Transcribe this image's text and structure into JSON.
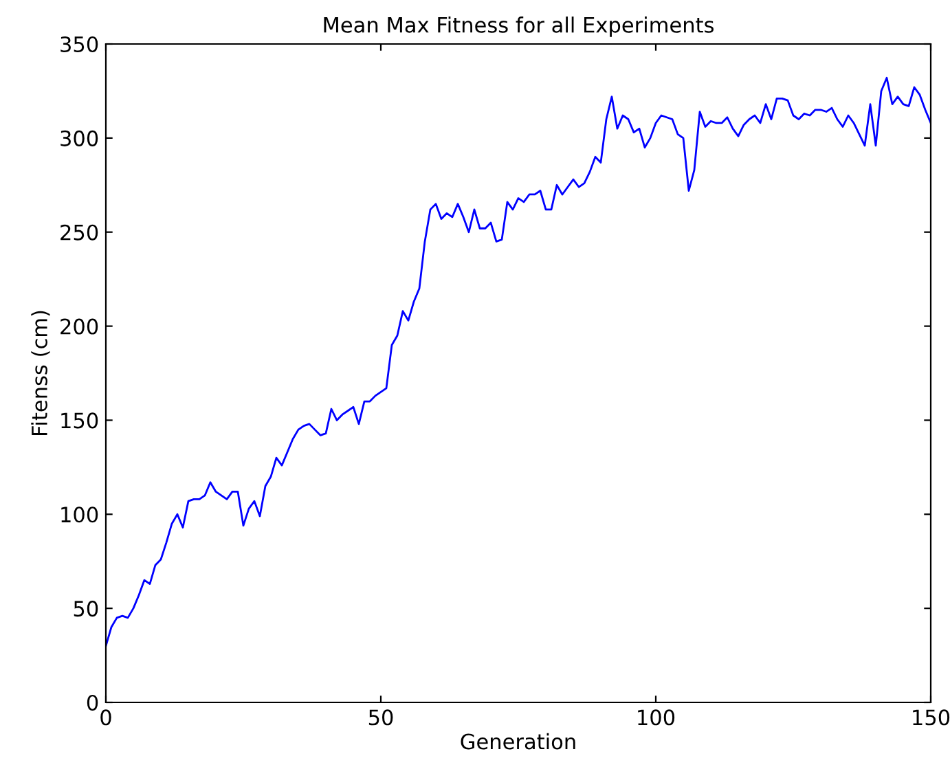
{
  "chart_data": {
    "type": "line",
    "title": "Mean Max Fitness for all Experiments",
    "xlabel": "Generation",
    "ylabel": "Fitenss (cm)",
    "x": [
      0,
      1,
      2,
      3,
      4,
      5,
      6,
      7,
      8,
      9,
      10,
      11,
      12,
      13,
      14,
      15,
      16,
      17,
      18,
      19,
      20,
      21,
      22,
      23,
      24,
      25,
      26,
      27,
      28,
      29,
      30,
      31,
      32,
      33,
      34,
      35,
      36,
      37,
      38,
      39,
      40,
      41,
      42,
      43,
      44,
      45,
      46,
      47,
      48,
      49,
      50,
      51,
      52,
      53,
      54,
      55,
      56,
      57,
      58,
      59,
      60,
      61,
      62,
      63,
      64,
      65,
      66,
      67,
      68,
      69,
      70,
      71,
      72,
      73,
      74,
      75,
      76,
      77,
      78,
      79,
      80,
      81,
      82,
      83,
      84,
      85,
      86,
      87,
      88,
      89,
      90,
      91,
      92,
      93,
      94,
      95,
      96,
      97,
      98,
      99,
      100,
      101,
      102,
      103,
      104,
      105,
      106,
      107,
      108,
      109,
      110,
      111,
      112,
      113,
      114,
      115,
      116,
      117,
      118,
      119,
      120,
      121,
      122,
      123,
      124,
      125,
      126,
      127,
      128,
      129,
      130,
      131,
      132,
      133,
      134,
      135,
      136,
      137,
      138,
      139,
      140,
      141,
      142,
      143,
      144,
      145,
      146,
      147,
      148,
      149,
      150
    ],
    "series": [
      {
        "color": "#0000ff",
        "values": [
          30,
          40,
          45,
          46,
          45,
          50,
          57,
          65,
          63,
          73,
          76,
          85,
          95,
          100,
          93,
          107,
          108,
          108,
          110,
          117,
          112,
          110,
          108,
          112,
          112,
          94,
          103,
          107,
          99,
          115,
          120,
          130,
          126,
          133,
          140,
          145,
          147,
          148,
          145,
          142,
          143,
          156,
          150,
          153,
          155,
          157,
          148,
          160,
          160,
          163,
          165,
          167,
          190,
          195,
          208,
          203,
          213,
          220,
          245,
          262,
          265,
          257,
          260,
          258,
          265,
          258,
          250,
          262,
          252,
          252,
          255,
          245,
          246,
          266,
          262,
          268,
          266,
          270,
          270,
          272,
          262,
          262,
          275,
          270,
          274,
          278,
          274,
          276,
          282,
          290,
          287,
          310,
          322,
          305,
          312,
          310,
          303,
          305,
          295,
          300,
          308,
          312,
          311,
          310,
          302,
          300,
          272,
          283,
          314,
          306,
          309,
          308,
          308,
          311,
          305,
          301,
          307,
          310,
          312,
          308,
          318,
          310,
          321,
          321,
          320,
          312,
          310,
          313,
          312,
          315,
          315,
          314,
          316,
          310,
          306,
          312,
          308,
          302,
          296,
          318,
          296,
          325,
          332,
          318,
          322,
          318,
          317,
          327,
          323,
          315,
          308
        ]
      }
    ],
    "xlim": [
      0,
      150
    ],
    "ylim": [
      0,
      350
    ],
    "xticks": [
      0,
      50,
      100,
      150
    ],
    "yticks": [
      0,
      50,
      100,
      150,
      200,
      250,
      300,
      350
    ],
    "grid": false,
    "legend": false
  }
}
